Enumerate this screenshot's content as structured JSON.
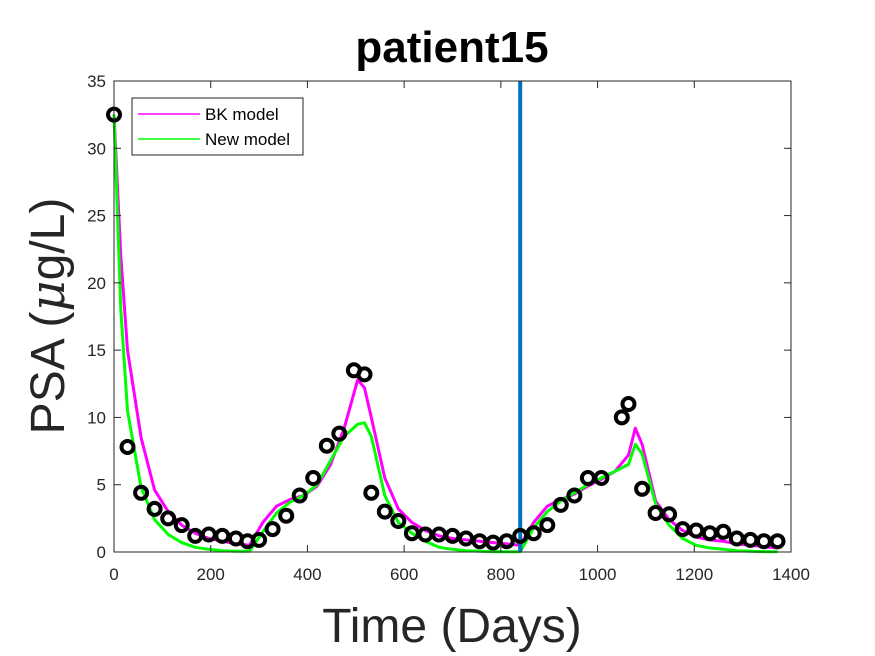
{
  "chart_data": {
    "type": "line",
    "title": "patient15",
    "xlabel": "Time (Days)",
    "ylabel_prefix": "PSA (",
    "ylabel_mu": "μ",
    "ylabel_suffix": "g/L)",
    "xlim": [
      0,
      1400
    ],
    "ylim": [
      0,
      35
    ],
    "xticks": [
      0,
      200,
      400,
      600,
      800,
      1000,
      1200,
      1400
    ],
    "yticks": [
      0,
      5,
      10,
      15,
      20,
      25,
      30,
      35
    ],
    "xtick_labels": [
      "0",
      "200",
      "400",
      "600",
      "800",
      "1000",
      "1200",
      "1400"
    ],
    "ytick_labels": [
      "0",
      "5",
      "10",
      "15",
      "20",
      "25",
      "30",
      "35"
    ],
    "vertical_line_x": 840,
    "legend_position": "top-left",
    "series": [
      {
        "name": "BK model",
        "color": "#ff00ff",
        "x": [
          0,
          14,
          28,
          56,
          84,
          112,
          140,
          168,
          196,
          224,
          252,
          280,
          308,
          336,
          364,
          392,
          420,
          448,
          476,
          504,
          518,
          532,
          560,
          588,
          616,
          644,
          672,
          700,
          728,
          756,
          784,
          812,
          840,
          868,
          896,
          924,
          952,
          980,
          1008,
          1036,
          1064,
          1078,
          1092,
          1120,
          1148,
          1176,
          1204,
          1232,
          1260,
          1288,
          1316,
          1344,
          1372
        ],
        "y": [
          32.5,
          22,
          15,
          8.5,
          4.6,
          3.0,
          2.0,
          1.4,
          1.0,
          0.8,
          0.6,
          0.5,
          2.2,
          3.4,
          3.9,
          4.2,
          4.9,
          6.5,
          9.2,
          12.8,
          12.2,
          10,
          5.5,
          3.2,
          2.2,
          1.6,
          1.2,
          1.0,
          0.9,
          0.8,
          0.7,
          0.6,
          0.5,
          2.2,
          3.4,
          3.9,
          4.3,
          4.9,
          5.4,
          6.0,
          7.2,
          9.2,
          8.0,
          3.8,
          2.4,
          1.6,
          1.1,
          0.9,
          0.8,
          0.6,
          0.5,
          0.4,
          0.3
        ]
      },
      {
        "name": "New model",
        "color": "#00ff00",
        "x": [
          0,
          14,
          28,
          56,
          84,
          112,
          140,
          168,
          196,
          224,
          252,
          280,
          308,
          336,
          364,
          392,
          420,
          448,
          476,
          504,
          518,
          532,
          560,
          588,
          616,
          644,
          672,
          700,
          728,
          756,
          784,
          812,
          840,
          868,
          896,
          924,
          952,
          980,
          1008,
          1036,
          1064,
          1078,
          1092,
          1120,
          1148,
          1176,
          1204,
          1232,
          1260,
          1288,
          1316,
          1344,
          1372
        ],
        "y": [
          32.5,
          18,
          10.5,
          4.8,
          2.4,
          1.3,
          0.7,
          0.35,
          0.2,
          0.1,
          0.05,
          0.05,
          1.5,
          2.9,
          3.7,
          4.2,
          5.0,
          6.8,
          8.6,
          9.5,
          9.6,
          8.6,
          4.2,
          2.2,
          1.4,
          0.8,
          0.35,
          0.2,
          0.1,
          0.05,
          0.03,
          0.02,
          0.02,
          1.8,
          3.0,
          3.8,
          4.4,
          5.0,
          5.5,
          6.0,
          6.5,
          8.0,
          7.3,
          3.6,
          2.0,
          1.0,
          0.5,
          0.3,
          0.2,
          0.1,
          0.05,
          0.03,
          0.02
        ]
      },
      {
        "name": "",
        "kind": "observed",
        "color": "#000000",
        "x": [
          0,
          28,
          56,
          84,
          112,
          140,
          168,
          196,
          224,
          252,
          276,
          300,
          328,
          356,
          384,
          412,
          440,
          466,
          496,
          518,
          532,
          560,
          588,
          616,
          644,
          672,
          700,
          728,
          756,
          784,
          812,
          840,
          868,
          896,
          924,
          952,
          980,
          1008,
          1050,
          1064,
          1092,
          1120,
          1148,
          1176,
          1204,
          1232,
          1260,
          1288,
          1316,
          1344,
          1372
        ],
        "y": [
          32.5,
          7.8,
          4.4,
          3.2,
          2.5,
          2.0,
          1.2,
          1.3,
          1.2,
          1.0,
          0.8,
          0.9,
          1.7,
          2.7,
          4.2,
          5.5,
          7.9,
          8.8,
          13.5,
          13.2,
          4.4,
          3.0,
          2.3,
          1.4,
          1.3,
          1.3,
          1.2,
          1.0,
          0.8,
          0.7,
          0.8,
          1.2,
          1.4,
          2.0,
          3.5,
          4.2,
          5.5,
          5.5,
          10.0,
          11.0,
          4.7,
          2.9,
          2.8,
          1.7,
          1.6,
          1.4,
          1.5,
          1.0,
          0.9,
          0.8,
          0.8
        ]
      }
    ]
  }
}
